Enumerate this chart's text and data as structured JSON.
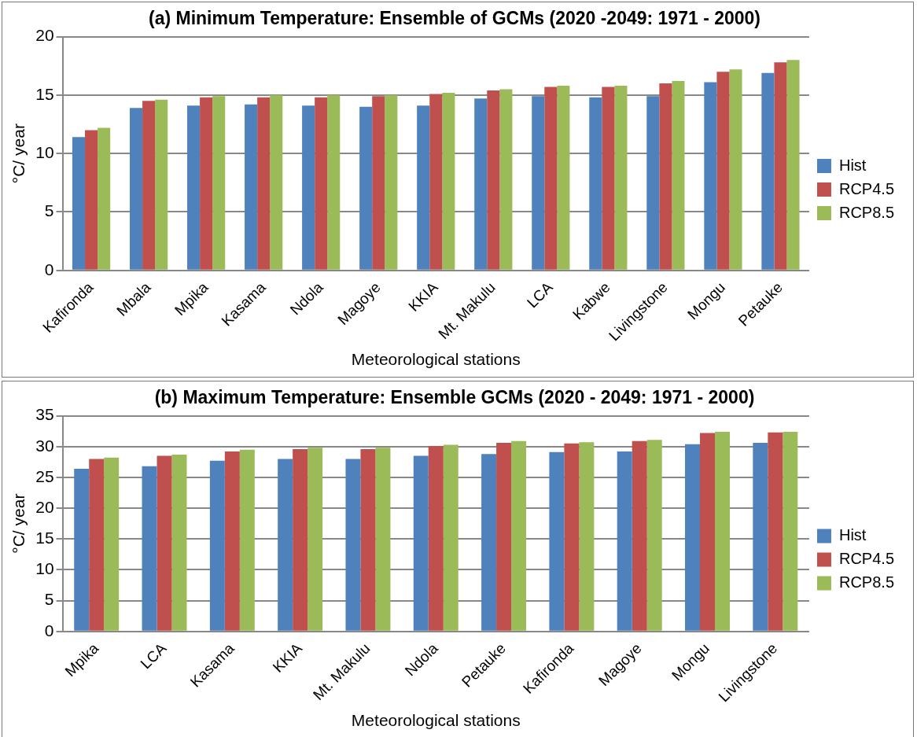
{
  "chart_data": [
    {
      "type": "bar",
      "title": "(a) Minimum Temperature: Ensemble of GCMs (2020 -2049: 1971 - 2000)",
      "xlabel": "Meteorological stations",
      "ylabel": "°C/ year",
      "categories": [
        "Kafironda",
        "Mbala",
        "Mpika",
        "Kasama",
        "Ndola",
        "Magoye",
        "KKIA",
        "Mt. Makulu",
        "LCA",
        "Kabwe",
        "Livingstone",
        "Mongu",
        "Petauke"
      ],
      "series": [
        {
          "name": "Hist",
          "color": "#4f81bd",
          "values": [
            11.4,
            13.9,
            14.1,
            14.2,
            14.1,
            14.0,
            14.1,
            14.7,
            14.9,
            14.8,
            14.9,
            16.1,
            16.9
          ]
        },
        {
          "name": "RCP4.5",
          "color": "#c0504d",
          "values": [
            12.0,
            14.5,
            14.8,
            14.8,
            14.8,
            14.9,
            15.1,
            15.4,
            15.7,
            15.7,
            16.0,
            17.0,
            17.8
          ]
        },
        {
          "name": "RCP8.5",
          "color": "#9bbb59",
          "values": [
            12.2,
            14.6,
            14.9,
            15.0,
            15.0,
            15.0,
            15.2,
            15.5,
            15.8,
            15.8,
            16.2,
            17.2,
            18.0
          ]
        }
      ],
      "ylim": [
        0,
        20
      ],
      "yticks": [
        0,
        5,
        10,
        15,
        20
      ],
      "grid": "y",
      "legend": "right"
    },
    {
      "type": "bar",
      "title": "(b) Maximum Temperature: Ensemble GCMs (2020 - 2049: 1971 - 2000)",
      "xlabel": "Meteorological stations",
      "ylabel": "°C/ year",
      "categories": [
        "Mpika",
        "LCA",
        "Kasama",
        "KKIA",
        "Mt. Makulu",
        "Ndola",
        "Petauke",
        "Kafironda",
        "Magoye",
        "Mongu",
        "Livingstone"
      ],
      "series": [
        {
          "name": "Hist",
          "color": "#4f81bd",
          "values": [
            26.4,
            26.8,
            27.7,
            28.0,
            28.0,
            28.5,
            28.8,
            29.1,
            29.2,
            30.4,
            30.6
          ]
        },
        {
          "name": "RCP4.5",
          "color": "#c0504d",
          "values": [
            28.0,
            28.5,
            29.2,
            29.6,
            29.6,
            30.1,
            30.6,
            30.5,
            30.9,
            32.2,
            32.3
          ]
        },
        {
          "name": "RCP8.5",
          "color": "#9bbb59",
          "values": [
            28.2,
            28.7,
            29.5,
            29.8,
            29.8,
            30.3,
            30.9,
            30.7,
            31.1,
            32.4,
            32.4
          ]
        }
      ],
      "ylim": [
        0,
        35
      ],
      "yticks": [
        0,
        5,
        10,
        15,
        20,
        25,
        30,
        35
      ],
      "grid": "y",
      "legend": "right"
    }
  ]
}
